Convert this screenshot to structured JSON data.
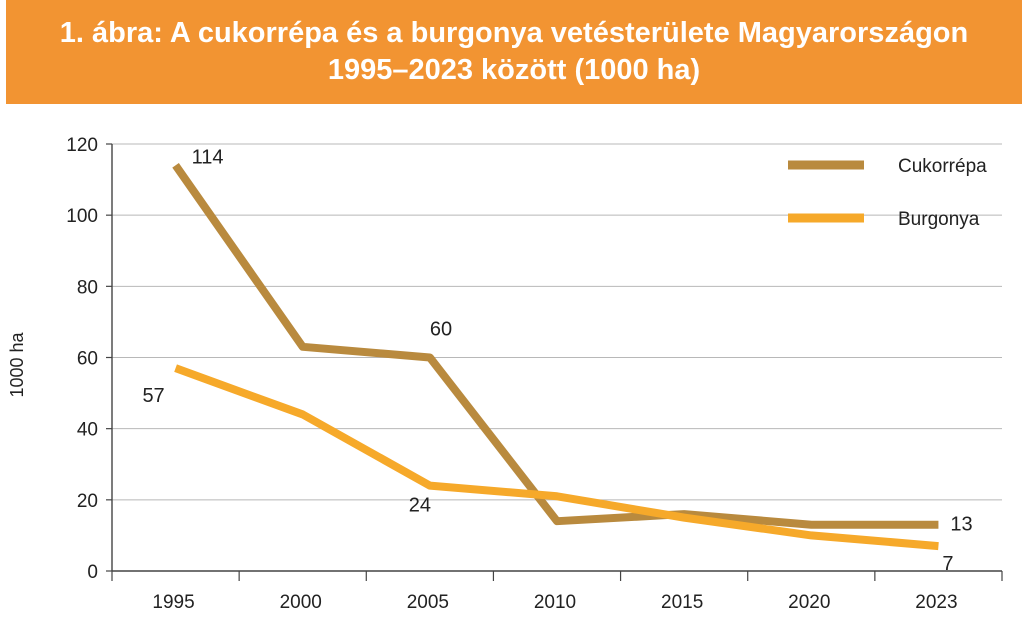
{
  "banner": {
    "line1": "1. ábra: A cukorrépa és a burgonya vetésterülete Magyarországon",
    "line2": "1995–2023 között (1000 ha)"
  },
  "chart_data": {
    "type": "line",
    "title": "1. ábra: A cukorrépa és a burgonya vetésterülete Magyarországon 1995–2023 között (1000 ha)",
    "xlabel": "",
    "ylabel": "1000 ha",
    "categories": [
      "1995",
      "2000",
      "2005",
      "2010",
      "2015",
      "2020",
      "2023"
    ],
    "ylim": [
      0,
      120
    ],
    "yticks": [
      0,
      20,
      40,
      60,
      80,
      100,
      120
    ],
    "grid": "horizontal",
    "legend": "top-right",
    "series": [
      {
        "name": "Cukorrépa",
        "color": "#B98A3E",
        "values": [
          114,
          63,
          60,
          14,
          16,
          13,
          13
        ]
      },
      {
        "name": "Burgonya",
        "color": "#F6A92A",
        "values": [
          57,
          44,
          24,
          21,
          15,
          10,
          7
        ]
      }
    ],
    "data_labels": [
      {
        "series": 0,
        "index": 0,
        "text": "114"
      },
      {
        "series": 0,
        "index": 2,
        "text": "60"
      },
      {
        "series": 0,
        "index": 6,
        "text": "13"
      },
      {
        "series": 1,
        "index": 0,
        "text": "57"
      },
      {
        "series": 1,
        "index": 2,
        "text": "24"
      },
      {
        "series": 1,
        "index": 6,
        "text": "7"
      }
    ]
  }
}
